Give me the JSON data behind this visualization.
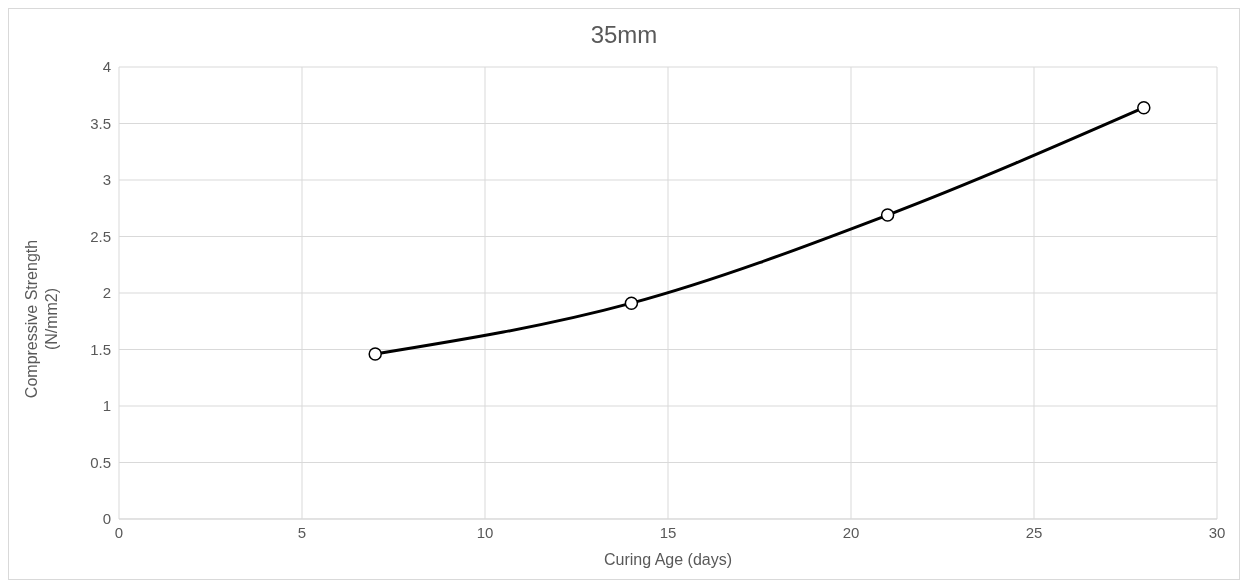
{
  "chart_data": {
    "type": "line",
    "title": "35mm",
    "xlabel": "Curing Age (days)",
    "ylabel": "Compressive Strength (N/mm2)",
    "x": [
      7,
      14,
      21,
      28
    ],
    "series": [
      {
        "color": "#000000",
        "values": [
          1.46,
          1.91,
          2.69,
          3.64
        ]
      }
    ],
    "xlim": [
      0,
      30
    ],
    "xticks": [
      0,
      5,
      10,
      15,
      20,
      25,
      30
    ],
    "ylim": [
      0,
      4
    ],
    "yticks": [
      0,
      0.5,
      1,
      1.5,
      2,
      2.5,
      3,
      3.5,
      4
    ],
    "grid": true,
    "legend": false,
    "marker": "circle",
    "line_style": "solid"
  }
}
